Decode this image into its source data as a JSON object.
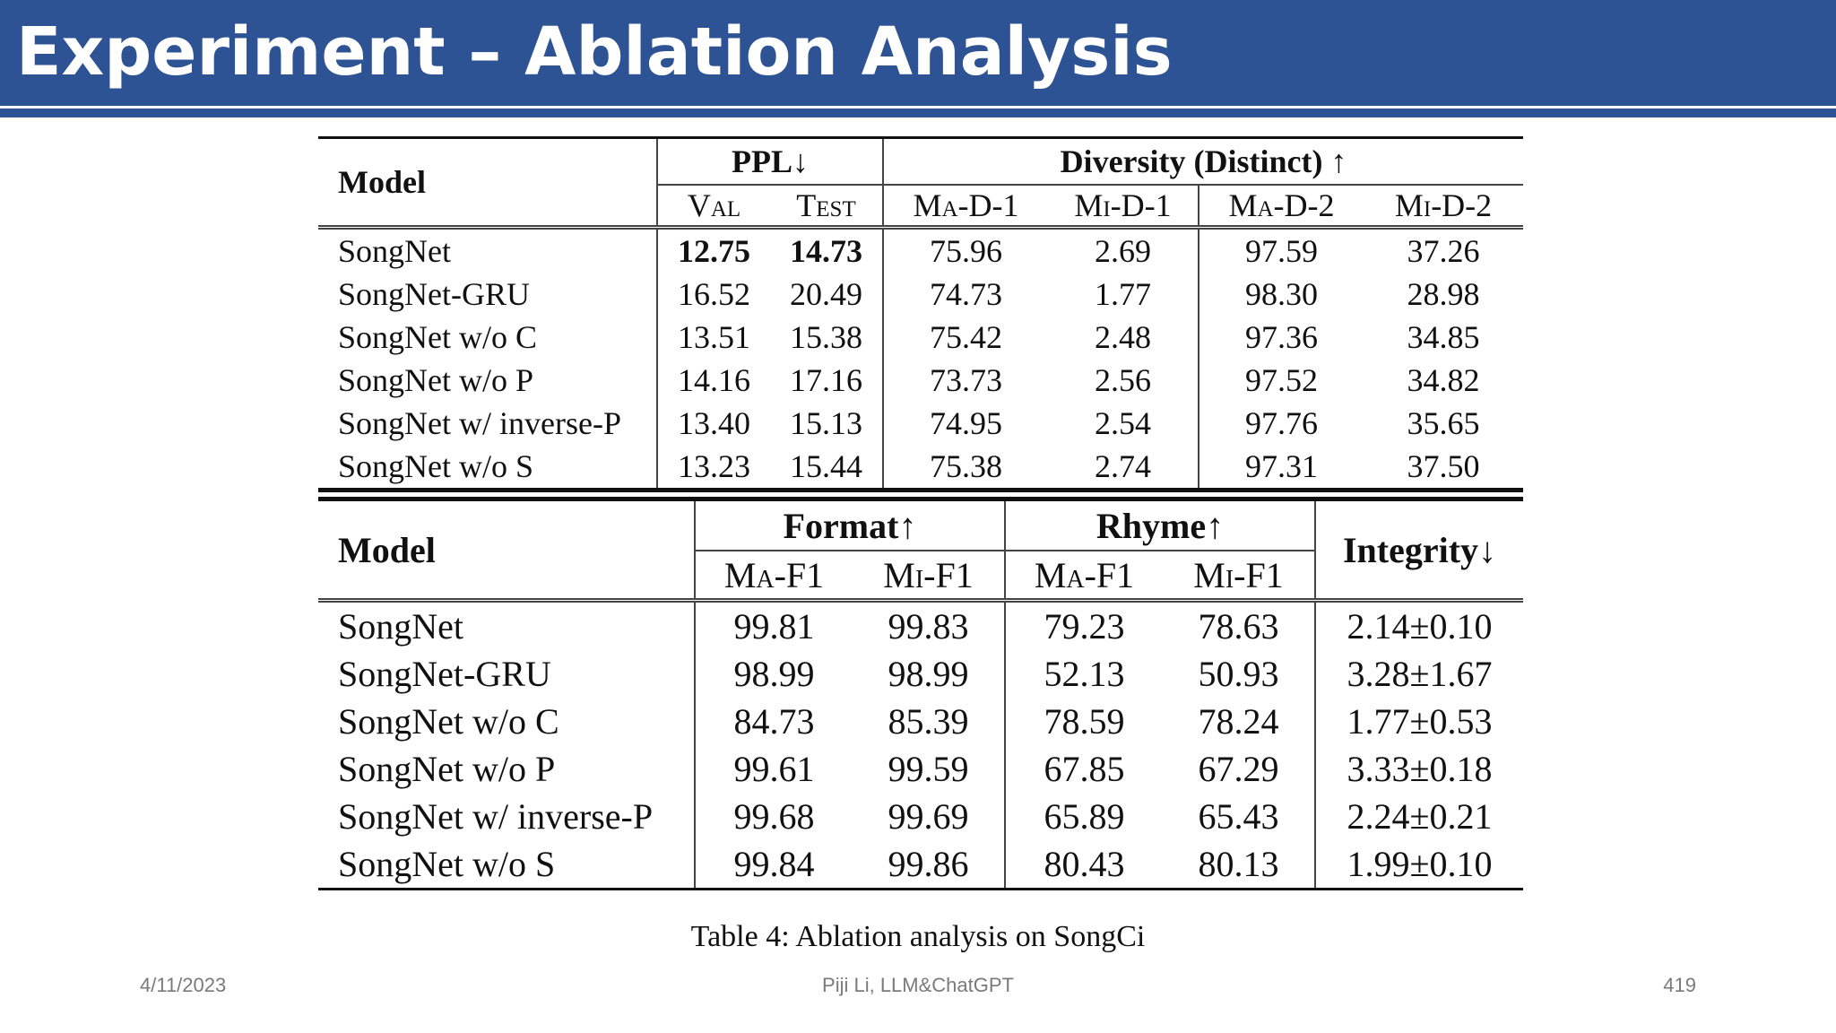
{
  "slide": {
    "title": "Experiment – Ablation Analysis"
  },
  "table_top": {
    "model_header": "Model",
    "ppl_header": "PPL↓",
    "diversity_header": "Diversity (Distinct) ↑",
    "sub_headers": [
      "Val",
      "Test",
      "Ma-D-1",
      "Mi-D-1",
      "Ma-D-2",
      "Mi-D-2"
    ],
    "rows": [
      {
        "model": "SongNet",
        "values": [
          "12.75",
          "14.73",
          "75.96",
          "2.69",
          "97.59",
          "37.26"
        ]
      },
      {
        "model": "SongNet-GRU",
        "values": [
          "16.52",
          "20.49",
          "74.73",
          "1.77",
          "98.30",
          "28.98"
        ]
      },
      {
        "model": "SongNet w/o C",
        "values": [
          "13.51",
          "15.38",
          "75.42",
          "2.48",
          "97.36",
          "34.85"
        ]
      },
      {
        "model": "SongNet w/o P",
        "values": [
          "14.16",
          "17.16",
          "73.73",
          "2.56",
          "97.52",
          "34.82"
        ]
      },
      {
        "model": "SongNet w/ inverse-P",
        "values": [
          "13.40",
          "15.13",
          "74.95",
          "2.54",
          "97.76",
          "35.65"
        ]
      },
      {
        "model": "SongNet w/o S",
        "values": [
          "13.23",
          "15.44",
          "75.38",
          "2.74",
          "97.31",
          "37.50"
        ]
      }
    ]
  },
  "table_bottom": {
    "model_header": "Model",
    "format_header": "Format↑",
    "rhyme_header": "Rhyme↑",
    "integrity_header": "Integrity↓",
    "sub_headers": [
      "Ma-F1",
      "Mi-F1",
      "Ma-F1",
      "Mi-F1"
    ],
    "rows": [
      {
        "model": "SongNet",
        "values": [
          "99.81",
          "99.83",
          "79.23",
          "78.63",
          "2.14±0.10"
        ]
      },
      {
        "model": "SongNet-GRU",
        "values": [
          "98.99",
          "98.99",
          "52.13",
          "50.93",
          "3.28±1.67"
        ]
      },
      {
        "model": "SongNet w/o C",
        "values": [
          "84.73",
          "85.39",
          "78.59",
          "78.24",
          "1.77±0.53"
        ]
      },
      {
        "model": "SongNet w/o P",
        "values": [
          "99.61",
          "99.59",
          "67.85",
          "67.29",
          "3.33±0.18"
        ]
      },
      {
        "model": "SongNet w/ inverse-P",
        "values": [
          "99.68",
          "99.69",
          "65.89",
          "65.43",
          "2.24±0.21"
        ]
      },
      {
        "model": "SongNet w/o S",
        "values": [
          "99.84",
          "99.86",
          "80.43",
          "80.13",
          "1.99±0.10"
        ]
      }
    ]
  },
  "caption": "Table 4: Ablation analysis on SongCi",
  "footer": {
    "date": "4/11/2023",
    "author": "Piji Li, LLM&ChatGPT",
    "page": "419"
  },
  "colors": {
    "header_blue": "#2e5395",
    "footer_gray": "#7a7a7a"
  }
}
